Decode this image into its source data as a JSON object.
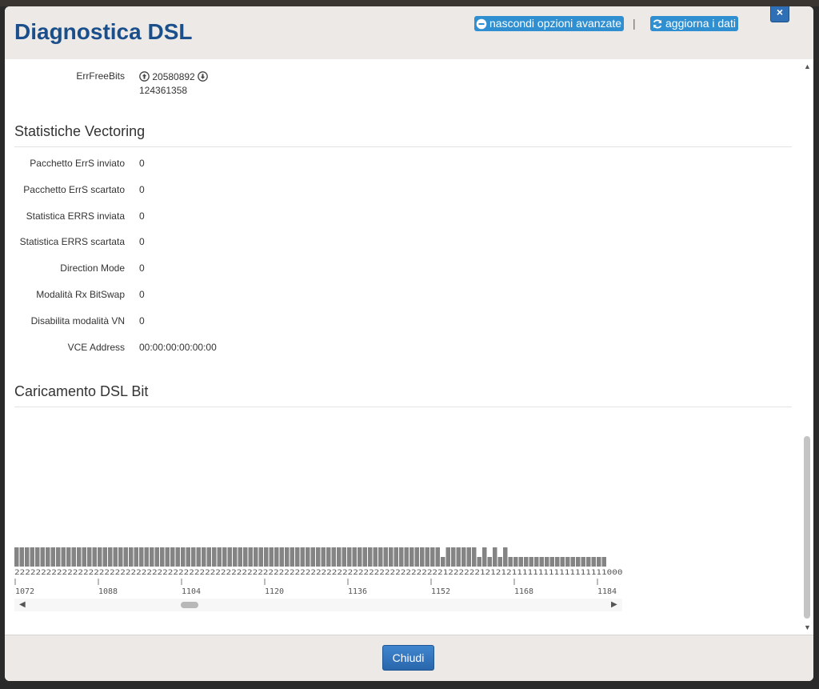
{
  "dialog": {
    "title": "Diagnostica DSL",
    "hide_advanced_label": "nascondi opzioni avanzate",
    "separator": "|",
    "refresh_label": "aggiorna i dati",
    "close_x": "×",
    "footer_close_label": "Chiudi"
  },
  "errfree": {
    "label": "ErrFreeBits",
    "up_value": "20580892",
    "down_value": "124361358"
  },
  "vectoring": {
    "title": "Statistiche Vectoring",
    "rows": [
      {
        "label": "Pacchetto ErrS inviato",
        "value": "0"
      },
      {
        "label": "Pacchetto ErrS scartato",
        "value": "0"
      },
      {
        "label": "Statistica ERRS inviata",
        "value": "0"
      },
      {
        "label": "Statistica ERRS scartata",
        "value": "0"
      },
      {
        "label": "Direction Mode",
        "value": "0"
      },
      {
        "label": "Modalità Rx BitSwap",
        "value": "0"
      },
      {
        "label": "Disabilita modalità VN",
        "value": "0"
      },
      {
        "label": "VCE Address",
        "value": "00:00:00:00:00:00"
      }
    ]
  },
  "bitloading": {
    "title": "Caricamento DSL Bit",
    "digits": "2222222222222222222222222222222222222222222222222222222222222222222222222222222221222222121212111111111111111111000",
    "tick_labels": [
      "1072",
      "1088",
      "1104",
      "1120",
      "1136",
      "1152",
      "1168",
      "1184"
    ]
  },
  "chart_data": {
    "type": "bar",
    "start_tone": 1072,
    "values": [
      2,
      2,
      2,
      2,
      2,
      2,
      2,
      2,
      2,
      2,
      2,
      2,
      2,
      2,
      2,
      2,
      2,
      2,
      2,
      2,
      2,
      2,
      2,
      2,
      2,
      2,
      2,
      2,
      2,
      2,
      2,
      2,
      2,
      2,
      2,
      2,
      2,
      2,
      2,
      2,
      2,
      2,
      2,
      2,
      2,
      2,
      2,
      2,
      2,
      2,
      2,
      2,
      2,
      2,
      2,
      2,
      2,
      2,
      2,
      2,
      2,
      2,
      2,
      2,
      2,
      2,
      2,
      2,
      2,
      2,
      2,
      2,
      2,
      2,
      2,
      2,
      2,
      2,
      2,
      2,
      2,
      2,
      1,
      2,
      2,
      2,
      2,
      2,
      2,
      1,
      2,
      1,
      2,
      1,
      2,
      1,
      1,
      1,
      1,
      1,
      1,
      1,
      1,
      1,
      1,
      1,
      1,
      1,
      1,
      1,
      1,
      1,
      1,
      1,
      0,
      0,
      0
    ],
    "ticks": [
      1072,
      1088,
      1104,
      1120,
      1136,
      1152,
      1168,
      1184
    ]
  },
  "icons": {
    "hide": "minus-circle-icon",
    "refresh": "refresh-icon",
    "up": "arrow-up-circle-icon",
    "down": "arrow-down-circle-icon",
    "close": "close-icon"
  }
}
